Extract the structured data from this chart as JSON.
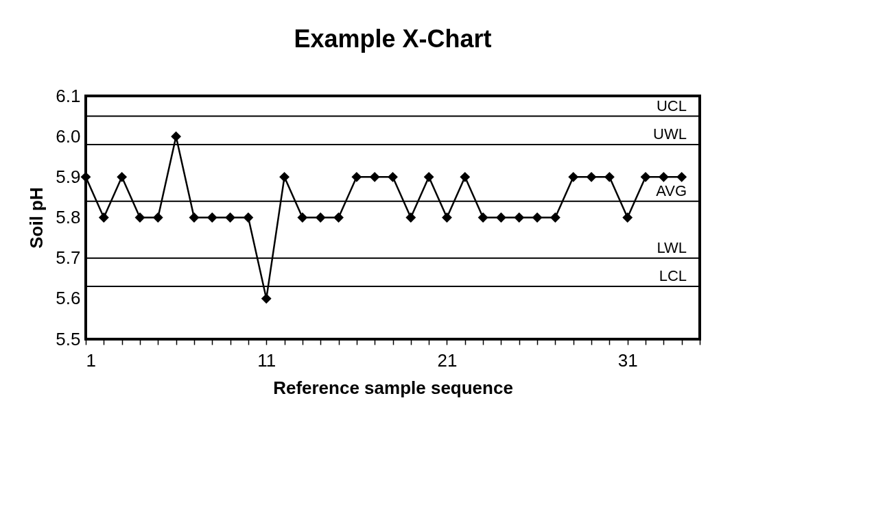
{
  "chart_data": {
    "type": "line",
    "title": "Example X-Chart",
    "xlabel": "Reference sample sequence",
    "ylabel": "Soil pH",
    "x": [
      1,
      2,
      3,
      4,
      5,
      6,
      7,
      8,
      9,
      10,
      11,
      12,
      13,
      14,
      15,
      16,
      17,
      18,
      19,
      20,
      21,
      22,
      23,
      24,
      25,
      26,
      27,
      28,
      29,
      30,
      31,
      32,
      33,
      34
    ],
    "series": [
      {
        "color": "#000000",
        "values": [
          5.9,
          5.8,
          5.9,
          5.8,
          5.8,
          6.0,
          5.8,
          5.8,
          5.8,
          5.8,
          5.6,
          5.9,
          5.8,
          5.8,
          5.8,
          5.9,
          5.9,
          5.9,
          5.8,
          5.9,
          5.8,
          5.9,
          5.8,
          5.8,
          5.8,
          5.8,
          5.8,
          5.9,
          5.9,
          5.9,
          5.8,
          5.9,
          5.9,
          5.9
        ]
      }
    ],
    "xlim": [
      1,
      35
    ],
    "xticks": [
      1,
      {
        "value": 2,
        "label": null
      },
      {
        "value": 3,
        "label": null
      },
      {
        "value": 4,
        "label": null
      },
      {
        "value": 5,
        "label": null
      },
      {
        "value": 6,
        "label": null
      },
      {
        "value": 7,
        "label": null
      },
      {
        "value": 8,
        "label": null
      },
      {
        "value": 9,
        "label": null
      },
      {
        "value": 10,
        "label": null
      },
      11,
      {
        "value": 12,
        "label": null
      },
      {
        "value": 13,
        "label": null
      },
      {
        "value": 14,
        "label": null
      },
      {
        "value": 15,
        "label": null
      },
      {
        "value": 16,
        "label": null
      },
      {
        "value": 17,
        "label": null
      },
      {
        "value": 18,
        "label": null
      },
      {
        "value": 19,
        "label": null
      },
      {
        "value": 20,
        "label": null
      },
      21,
      {
        "value": 22,
        "label": null
      },
      {
        "value": 23,
        "label": null
      },
      {
        "value": 24,
        "label": null
      },
      {
        "value": 25,
        "label": null
      },
      {
        "value": 26,
        "label": null
      },
      {
        "value": 27,
        "label": null
      },
      {
        "value": 28,
        "label": null
      },
      {
        "value": 29,
        "label": null
      },
      {
        "value": 30,
        "label": null
      },
      31,
      {
        "value": 32,
        "label": null
      },
      {
        "value": 33,
        "label": null
      },
      {
        "value": 34,
        "label": null
      },
      {
        "value": 35,
        "label": null
      }
    ],
    "ylim": [
      5.5,
      6.1
    ],
    "yticks": [
      {
        "value": 5.5,
        "label": "5.5"
      },
      {
        "value": 5.6,
        "label": "5.6"
      },
      {
        "value": 5.7,
        "label": "5.7"
      },
      {
        "value": 5.8,
        "label": "5.8"
      },
      {
        "value": 5.9,
        "label": "5.9"
      },
      {
        "value": 6.0,
        "label": "6.0"
      },
      {
        "value": 6.1,
        "label": "6.1"
      }
    ],
    "ref_lines": [
      {
        "axis": "y",
        "value": 6.05,
        "label": "UCL",
        "color": "#000000"
      },
      {
        "axis": "y",
        "value": 5.98,
        "label": "UWL",
        "color": "#000000"
      },
      {
        "axis": "y",
        "value": 5.84,
        "label": "AVG",
        "color": "#000000"
      },
      {
        "axis": "y",
        "value": 5.7,
        "label": "LWL",
        "color": "#000000"
      },
      {
        "axis": "y",
        "value": 5.63,
        "label": "LCL",
        "color": "#000000"
      }
    ],
    "grid": false,
    "marker": "diamond",
    "line_style": "solid"
  }
}
